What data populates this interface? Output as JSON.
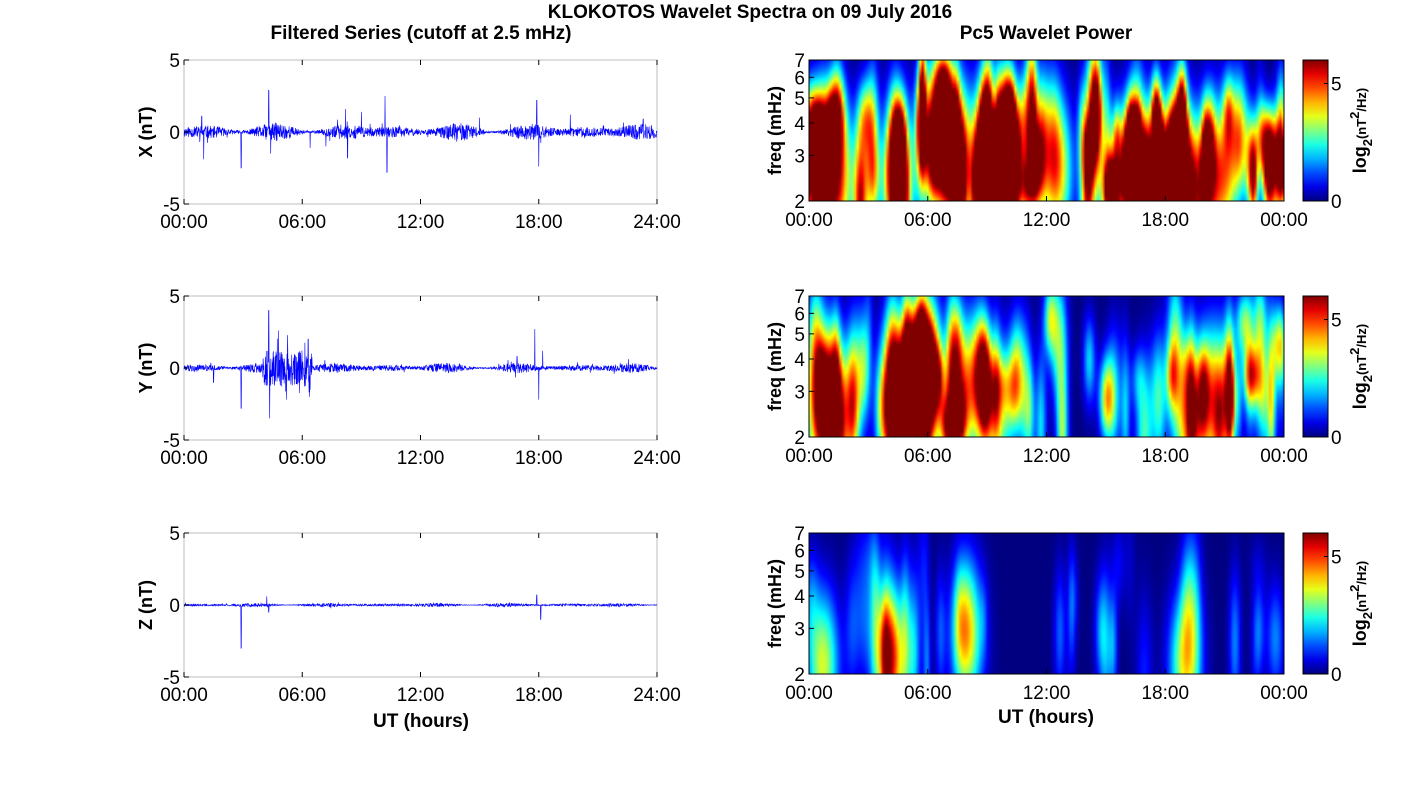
{
  "figure": {
    "title": "KLOKOTOS Wavelet Spectra on 09 July 2016",
    "left_title": "Filtered Series (cutoff at 2.5 mHz)",
    "right_title": "Pc5 Wavelet Power",
    "x_label": "UT (hours)"
  },
  "chart_data": [
    {
      "type": "line",
      "component": "X",
      "ylabel": "X (nT)",
      "xlim": [
        0,
        24
      ],
      "x_tick_labels": [
        "00:00",
        "06:00",
        "12:00",
        "18:00",
        "24:00"
      ],
      "ylim": [
        -5,
        5
      ],
      "y_tick_labels": [
        "5",
        "0",
        "-5"
      ],
      "series": [
        {
          "color": "#0000ff",
          "noise_amplitude": 0.5,
          "spikes": [
            [
              0.9,
              1.1
            ],
            [
              1.0,
              -1.9
            ],
            [
              2.9,
              -2.5
            ],
            [
              4.3,
              2.9
            ],
            [
              4.4,
              -1.5
            ],
            [
              6.4,
              -1.1
            ],
            [
              7.2,
              -1.0
            ],
            [
              8.2,
              1.6
            ],
            [
              8.3,
              -1.8
            ],
            [
              9.0,
              1.4
            ],
            [
              10.2,
              2.5
            ],
            [
              10.3,
              -2.8
            ],
            [
              15.0,
              1.0
            ],
            [
              17.9,
              2.2
            ],
            [
              18.0,
              -2.4
            ],
            [
              19.6,
              1.2
            ],
            [
              23.3,
              0.9
            ]
          ]
        }
      ]
    },
    {
      "type": "line",
      "component": "Y",
      "ylabel": "Y (nT)",
      "xlim": [
        0,
        24
      ],
      "x_tick_labels": [
        "00:00",
        "06:00",
        "12:00",
        "18:00",
        "24:00"
      ],
      "ylim": [
        -5,
        5
      ],
      "y_tick_labels": [
        "5",
        "0",
        "-5"
      ],
      "series": [
        {
          "color": "#0000ff",
          "noise_amplitude": 0.3,
          "bursts": [
            [
              4.0,
              6.5,
              1.3
            ]
          ],
          "spikes": [
            [
              1.5,
              -1.0
            ],
            [
              2.9,
              -2.8
            ],
            [
              4.3,
              4.0
            ],
            [
              4.35,
              -3.5
            ],
            [
              4.8,
              2.6
            ],
            [
              5.2,
              -2.2
            ],
            [
              6.3,
              2.0
            ],
            [
              6.4,
              -1.5
            ],
            [
              16.9,
              0.8
            ],
            [
              17.8,
              2.7
            ],
            [
              18.0,
              -2.2
            ],
            [
              18.2,
              1.2
            ]
          ]
        }
      ]
    },
    {
      "type": "line",
      "component": "Z",
      "ylabel": "Z (nT)",
      "xlim": [
        0,
        24
      ],
      "x_tick_labels": [
        "00:00",
        "06:00",
        "12:00",
        "18:00",
        "24:00"
      ],
      "ylim": [
        -5,
        5
      ],
      "y_tick_labels": [
        "5",
        "0",
        "-5"
      ],
      "series": [
        {
          "color": "#0000ff",
          "noise_amplitude": 0.12,
          "spikes": [
            [
              2.9,
              -3.0
            ],
            [
              4.2,
              0.6
            ],
            [
              4.3,
              -0.5
            ],
            [
              17.9,
              0.7
            ],
            [
              18.1,
              -1.0
            ]
          ]
        }
      ]
    },
    {
      "type": "heatmap",
      "component": "X",
      "ylabel": "freq (mHz)",
      "colorbar_label": "log2(nT2/Hz)",
      "yscale": "log",
      "ylim": [
        2,
        7
      ],
      "y_tick_labels": [
        "2",
        "3",
        "4",
        "5",
        "6",
        "7"
      ],
      "xlim": [
        0,
        24
      ],
      "x_tick_labels": [
        "00:00",
        "06:00",
        "12:00",
        "18:00",
        "00:00"
      ],
      "clim": [
        0,
        6
      ],
      "colorbar_ticks": [
        "0",
        "5"
      ],
      "activity": 1.1,
      "seed": 7,
      "hotspots": [
        [
          0.5,
          2.3,
          5.5
        ],
        [
          1.5,
          2.6,
          4.5
        ],
        [
          4.5,
          2.5,
          5.5
        ],
        [
          6.4,
          3.9,
          5.0
        ],
        [
          7.5,
          3.2,
          5.5
        ],
        [
          9.5,
          2.5,
          5.0
        ],
        [
          12.5,
          2.8,
          4.5
        ],
        [
          15.5,
          2.4,
          4.5
        ],
        [
          17.5,
          2.3,
          5.0
        ],
        [
          19.2,
          2.3,
          6.0
        ],
        [
          20.5,
          2.6,
          5.0
        ]
      ]
    },
    {
      "type": "heatmap",
      "component": "Y",
      "ylabel": "freq (mHz)",
      "colorbar_label": "log2(nT2/Hz)",
      "yscale": "log",
      "ylim": [
        2,
        7
      ],
      "y_tick_labels": [
        "2",
        "3",
        "4",
        "5",
        "6",
        "7"
      ],
      "xlim": [
        0,
        24
      ],
      "x_tick_labels": [
        "00:00",
        "06:00",
        "12:00",
        "18:00",
        "00:00"
      ],
      "clim": [
        0,
        6
      ],
      "colorbar_ticks": [
        "0",
        "5"
      ],
      "activity": 0.85,
      "seed": 19,
      "hotspots": [
        [
          0.6,
          2.8,
          5.0
        ],
        [
          1.3,
          2.5,
          5.0
        ],
        [
          4.4,
          3.0,
          7.0
        ],
        [
          5.2,
          2.5,
          7.0
        ],
        [
          5.8,
          3.5,
          6.5
        ],
        [
          7.8,
          3.2,
          5.0
        ],
        [
          9.5,
          2.7,
          3.5
        ],
        [
          19.3,
          2.5,
          5.0
        ],
        [
          20.5,
          3.0,
          4.5
        ]
      ]
    },
    {
      "type": "heatmap",
      "component": "Z",
      "ylabel": "freq (mHz)",
      "colorbar_label": "log2(nT2/Hz)",
      "yscale": "log",
      "ylim": [
        2,
        7
      ],
      "y_tick_labels": [
        "2",
        "3",
        "4",
        "5",
        "6",
        "7"
      ],
      "xlim": [
        0,
        24
      ],
      "x_tick_labels": [
        "00:00",
        "06:00",
        "12:00",
        "18:00",
        "00:00"
      ],
      "clim": [
        0,
        6
      ],
      "colorbar_ticks": [
        "0",
        "5"
      ],
      "activity": 0.35,
      "seed": 31,
      "hotspots": [
        [
          0.7,
          2.3,
          3.5
        ],
        [
          4.1,
          2.4,
          5.0
        ],
        [
          8.0,
          3.0,
          4.0
        ],
        [
          19.0,
          2.3,
          3.5
        ]
      ]
    }
  ]
}
